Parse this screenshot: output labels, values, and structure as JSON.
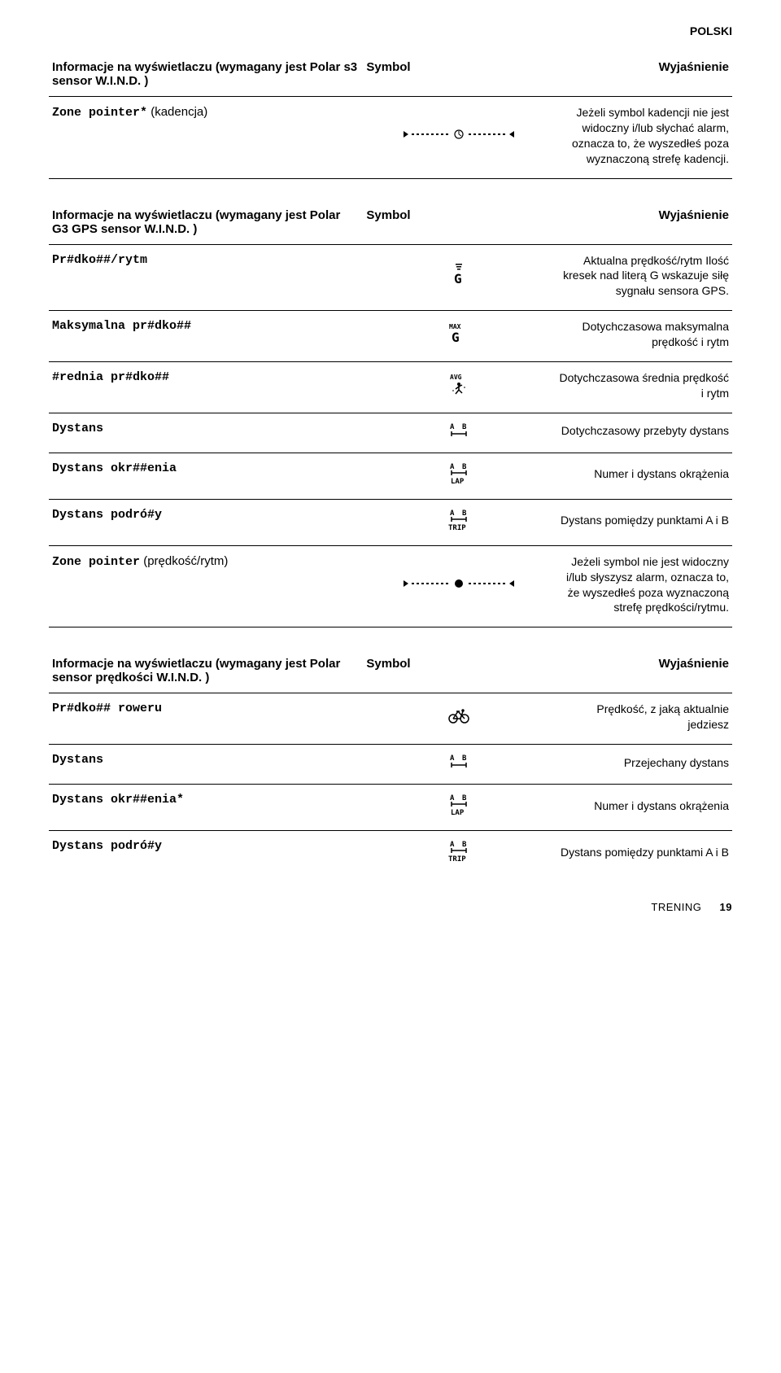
{
  "lang_header": "POLSKI",
  "tables": [
    {
      "header_label": "Informacje na wyświetlaczu (wymagany jest Polar s3 sensor W.I.N.D. )",
      "header_symbol": "Symbol",
      "header_expl": "Wyjaśnienie",
      "rows": [
        {
          "label": "Zone pointer*",
          "paren": " (kadencja)",
          "symbol_type": "zone-pointer-open",
          "expl": "Jeżeli symbol kadencji nie jest widoczny i/lub słychać alarm, oznacza to, że wyszedłeś poza wyznaczoną strefę kadencji."
        }
      ]
    },
    {
      "header_label": "Informacje na wyświetlaczu (wymagany jest Polar G3 GPS sensor W.I.N.D. )",
      "header_symbol": "Symbol",
      "header_expl": "Wyjaśnienie",
      "rows": [
        {
          "label": "Pr#dko##/rytm",
          "paren": "",
          "symbol_type": "g-signal",
          "expl": "Aktualna prędkość/rytm Ilość kresek nad literą G wskazuje siłę sygnału sensora GPS."
        },
        {
          "label": "Maksymalna pr#dko##",
          "paren": "",
          "symbol_type": "max-g",
          "expl": "Dotychczasowa maksymalna prędkość i rytm"
        },
        {
          "label": "#rednia pr#dko##",
          "paren": "",
          "symbol_type": "avg-runner",
          "expl": "Dotychczasowa średnia prędkość i rytm"
        },
        {
          "label": "Dystans",
          "paren": "",
          "symbol_type": "ab-dist",
          "expl": "Dotychczasowy przebyty dystans"
        },
        {
          "label": "Dystans okr##enia",
          "paren": "",
          "symbol_type": "ab-lap",
          "expl": "Numer i dystans okrążenia"
        },
        {
          "label": "Dystans podró#y",
          "paren": "",
          "symbol_type": "ab-trip",
          "expl": "Dystans pomiędzy punktami A i B"
        },
        {
          "label": "Zone pointer",
          "paren": " (prędkość/rytm)",
          "symbol_type": "zone-pointer-filled",
          "expl": "Jeżeli symbol nie jest widoczny i/lub słyszysz alarm, oznacza to, że wyszedłeś poza wyznaczoną strefę prędkości/rytmu."
        }
      ]
    },
    {
      "header_label": "Informacje na wyświetlaczu (wymagany jest Polar sensor prędkości W.I.N.D. )",
      "header_symbol": "Symbol",
      "header_expl": "Wyjaśnienie",
      "rows": [
        {
          "label": "Pr#dko## roweru",
          "paren": "",
          "symbol_type": "bike",
          "expl": "Prędkość, z jaką aktualnie jedziesz"
        },
        {
          "label": "Dystans",
          "paren": "",
          "symbol_type": "ab-dist",
          "expl": "Przejechany dystans"
        },
        {
          "label": "Dystans okr##enia*",
          "paren": "",
          "symbol_type": "ab-lap",
          "expl": "Numer i dystans okrążenia"
        },
        {
          "label": "Dystans podró#y",
          "paren": "",
          "symbol_type": "ab-trip",
          "expl": "Dystans pomiędzy punktami A i B",
          "last": true
        }
      ]
    }
  ],
  "footer_text": "TRENING",
  "footer_page": "19",
  "symbols": {
    "zone-pointer-open": "<svg width='140' height='16' viewBox='0 0 140 16'><g fill='#000'><polygon points='2,4 2,12 8,8'/><rect x='12' y='7' width='3' height='2'/><rect x='18' y='7' width='3' height='2'/><rect x='24' y='7' width='3' height='2'/><rect x='30' y='7' width='3' height='2'/><rect x='36' y='7' width='3' height='2'/><rect x='42' y='7' width='3' height='2'/><rect x='48' y='7' width='3' height='2'/><rect x='54' y='7' width='3' height='2'/><circle cx='70' cy='8' r='5' fill='none' stroke='#000' stroke-width='1.2'/><line x1='70' y1='8' x2='70' y2='4' stroke='#000' stroke-width='1'/><line x1='70' y1='8' x2='73' y2='10' stroke='#000' stroke-width='1'/><rect x='82' y='7' width='3' height='2'/><rect x='88' y='7' width='3' height='2'/><rect x='94' y='7' width='3' height='2'/><rect x='100' y='7' width='3' height='2'/><rect x='106' y='7' width='3' height='2'/><rect x='112' y='7' width='3' height='2'/><rect x='118' y='7' width='3' height='2'/><rect x='124' y='7' width='3' height='2'/><polygon points='138,4 138,12 132,8'/></g></svg>",
    "zone-pointer-filled": "<svg width='140' height='16' viewBox='0 0 140 16'><g fill='#000'><polygon points='2,4 2,12 8,8'/><rect x='12' y='7' width='3' height='2'/><rect x='18' y='7' width='3' height='2'/><rect x='24' y='7' width='3' height='2'/><rect x='30' y='7' width='3' height='2'/><rect x='36' y='7' width='3' height='2'/><rect x='42' y='7' width='3' height='2'/><rect x='48' y='7' width='3' height='2'/><rect x='54' y='7' width='3' height='2'/><circle cx='70' cy='8' r='5'/><rect x='82' y='7' width='3' height='2'/><rect x='88' y='7' width='3' height='2'/><rect x='94' y='7' width='3' height='2'/><rect x='100' y='7' width='3' height='2'/><rect x='106' y='7' width='3' height='2'/><rect x='112' y='7' width='3' height='2'/><rect x='118' y='7' width='3' height='2'/><rect x='124' y='7' width='3' height='2'/><polygon points='138,4 138,12 132,8'/></g></svg>",
    "g-signal": "<svg width='20' height='26' viewBox='0 0 20 26'><g fill='#000'><rect x='6' y='0' width='8' height='1.5'/><rect x='7' y='3' width='6' height='1.5'/><rect x='8' y='6' width='4' height='1.5'/><text x='4' y='24' font-family='monospace' font-size='16' font-weight='bold'>G</text></g></svg>",
    "max-g": "<svg width='28' height='26' viewBox='0 0 28 26'><g fill='#000'><text x='2' y='8' font-family='monospace' font-size='8' font-weight='bold'>MAX</text><text x='5' y='24' font-family='monospace' font-size='16' font-weight='bold'>G</text></g></svg>",
    "avg-runner": "<svg width='26' height='28' viewBox='0 0 26 28'><g fill='#000'><text x='2' y='8' font-family='monospace' font-size='8' font-weight='bold'>AVG</text><circle cx='13' cy='14' r='2'/><line x1='13' y1='16' x2='13' y2='21' stroke='#000' stroke-width='1.5'/><line x1='13' y1='17' x2='9' y2='20' stroke='#000' stroke-width='1.5'/><line x1='13' y1='17' x2='17' y2='15' stroke='#000' stroke-width='1.5'/><line x1='13' y1='21' x2='9' y2='26' stroke='#000' stroke-width='1.5'/><line x1='13' y1='21' x2='17' y2='25' stroke='#000' stroke-width='1.5'/><line x1='5' y1='22' x2='7' y2='22' stroke='#000' stroke-width='1'/><line x1='19' y1='18' x2='21' y2='18' stroke='#000' stroke-width='1'/></g></svg>",
    "ab-dist": "<svg width='26' height='20' viewBox='0 0 26 20'><g fill='#000'><text x='2' y='9' font-family='monospace' font-size='9' font-weight='bold'>A</text><text x='17' y='9' font-family='monospace' font-size='9' font-weight='bold'>B</text><line x1='4' y1='15' x2='22' y2='15' stroke='#000' stroke-width='1.5'/><line x1='4' y1='12' x2='4' y2='18' stroke='#000' stroke-width='1.5'/><line x1='22' y1='12' x2='22' y2='18' stroke='#000' stroke-width='1.5'/></g></svg>",
    "ab-lap": "<svg width='26' height='28' viewBox='0 0 26 28'><g fill='#000'><text x='2' y='9' font-family='monospace' font-size='9' font-weight='bold'>A</text><text x='17' y='9' font-family='monospace' font-size='9' font-weight='bold'>B</text><line x1='4' y1='14' x2='22' y2='14' stroke='#000' stroke-width='1.5'/><line x1='4' y1='11' x2='4' y2='17' stroke='#000' stroke-width='1.5'/><line x1='22' y1='11' x2='22' y2='17' stroke='#000' stroke-width='1.5'/><text x='3' y='27' font-family='monospace' font-size='9' font-weight='bold'>LAP</text></g></svg>",
    "ab-trip": "<svg width='28' height='28' viewBox='0 0 28 28'><g fill='#000'><text x='3' y='9' font-family='monospace' font-size='9' font-weight='bold'>A</text><text x='18' y='9' font-family='monospace' font-size='9' font-weight='bold'>B</text><line x1='5' y1='14' x2='23' y2='14' stroke='#000' stroke-width='1.5'/><line x1='5' y1='11' x2='5' y2='17' stroke='#000' stroke-width='1.5'/><line x1='23' y1='11' x2='23' y2='17' stroke='#000' stroke-width='1.5'/><text x='1' y='27' font-family='monospace' font-size='9' font-weight='bold'>TRIP</text></g></svg>",
    "bike": "<svg width='28' height='20' viewBox='0 0 28 20'><g fill='none' stroke='#000' stroke-width='1.5'><circle cx='7' cy='14' r='5'/><circle cx='21' cy='14' r='5'/><line x1='7' y1='14' x2='13' y2='5'/><line x1='13' y1='5' x2='21' y2='14'/><line x1='7' y1='14' x2='16' y2='14'/><line x1='16' y1='14' x2='19' y2='5'/><line x1='11' y1='5' x2='15' y2='5'/><circle cx='19' cy='4' r='1' fill='#000'/></g></svg>"
  }
}
